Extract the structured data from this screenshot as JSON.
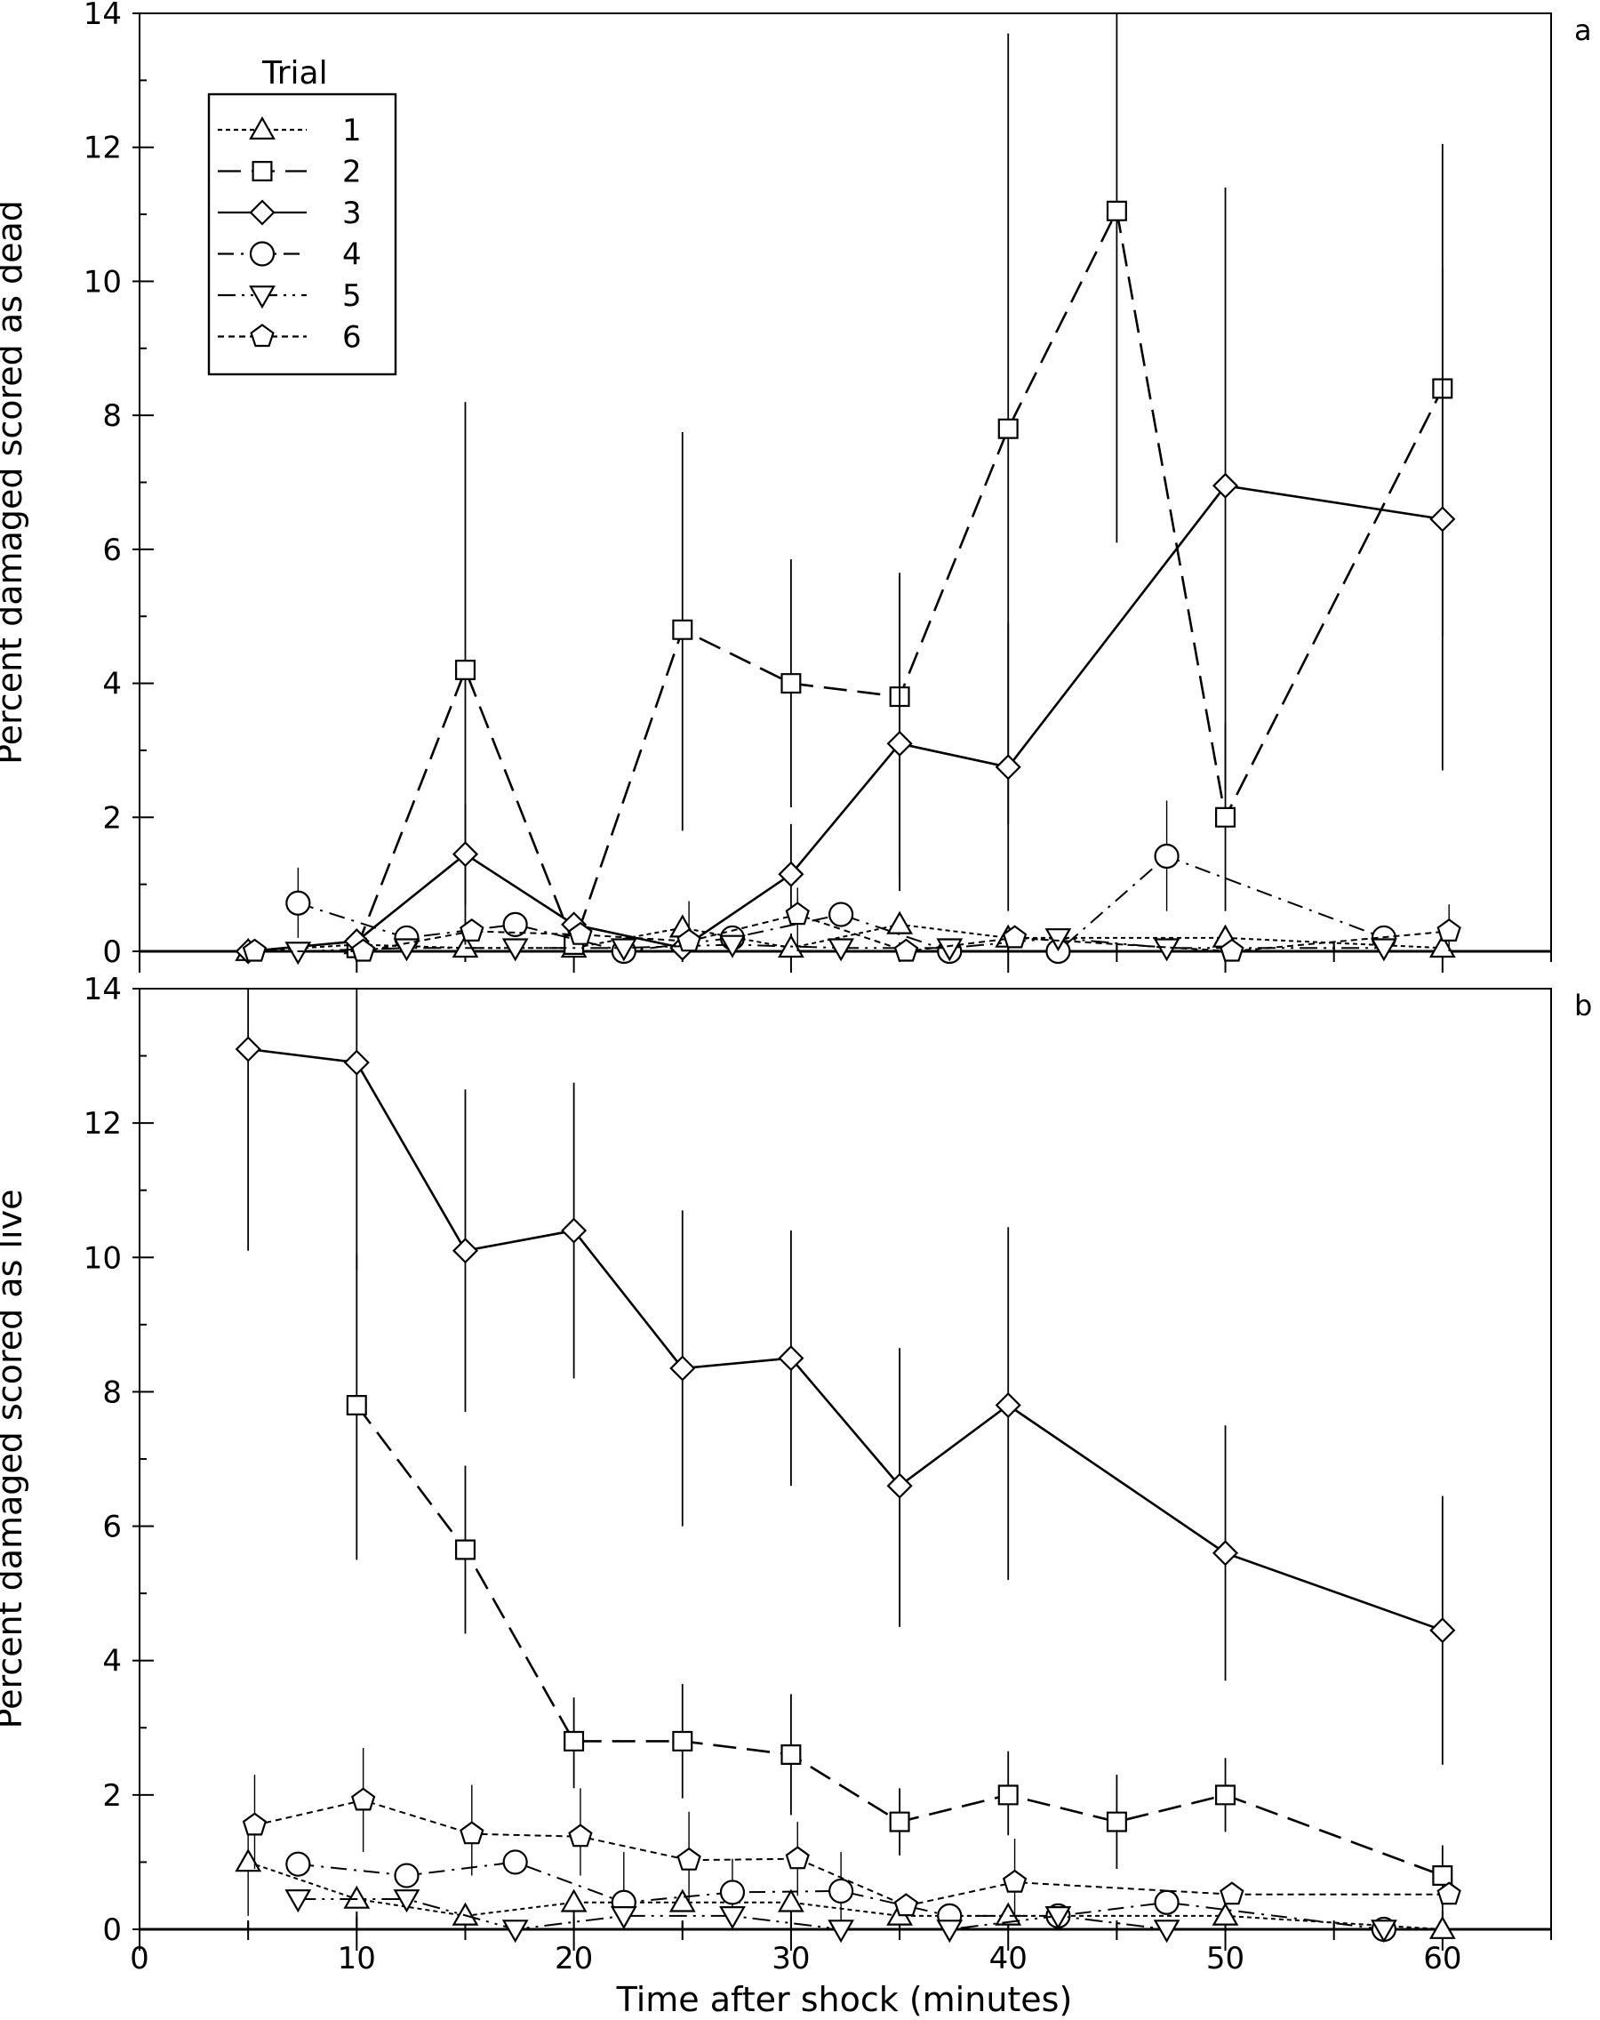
{
  "chart_data": [
    {
      "panel": "a",
      "type": "line",
      "ylabel": "Percent damaged scored as dead",
      "xlabel": "",
      "xlim": [
        0,
        65
      ],
      "ylim": [
        0,
        14
      ],
      "xticks": [
        "0",
        "10",
        "20",
        "30",
        "40",
        "50",
        "60"
      ],
      "yticks": [
        "0",
        "2",
        "4",
        "6",
        "8",
        "10",
        "12",
        "14"
      ],
      "legend": {
        "title": "Trial",
        "position": "top-left",
        "entries": [
          "1",
          "2",
          "3",
          "4",
          "5",
          "6"
        ]
      },
      "series": [
        {
          "name": "1",
          "marker": "triangle-up",
          "dash": "short",
          "points": [
            [
              5,
              0
            ],
            [
              10,
              0.1
            ],
            [
              15,
              0.05
            ],
            [
              20,
              0.05
            ],
            [
              25,
              0.35
            ],
            [
              30,
              0.05
            ],
            [
              35,
              0.4
            ],
            [
              40,
              0.2
            ],
            [
              50,
              0.2
            ],
            [
              60,
              0.05
            ]
          ]
        },
        {
          "name": "2",
          "marker": "square",
          "dash": "long",
          "points": [
            [
              10,
              0.05
            ],
            [
              15,
              4.2
            ],
            [
              20,
              0.1
            ],
            [
              25,
              4.8
            ],
            [
              30,
              4.0
            ],
            [
              35,
              3.8
            ],
            [
              40,
              7.8
            ],
            [
              45,
              11.05
            ],
            [
              50,
              2.0
            ],
            [
              60,
              8.4
            ]
          ],
          "err": [
            null,
            [
              0.1,
              8.2
            ],
            null,
            [
              1.8,
              7.75
            ],
            [
              2.15,
              5.85
            ],
            [
              0.9,
              5.65
            ],
            [
              1.9,
              13.7
            ],
            [
              6.1,
              14.0
            ],
            [
              0.6,
              3.4
            ],
            [
              4.7,
              12.05
            ]
          ]
        },
        {
          "name": "3",
          "marker": "diamond",
          "dash": "solid",
          "points": [
            [
              5,
              0
            ],
            [
              10,
              0.15
            ],
            [
              15,
              1.45
            ],
            [
              20,
              0.4
            ],
            [
              25,
              0.05
            ],
            [
              30,
              1.15
            ],
            [
              35,
              3.1
            ],
            [
              40,
              2.75
            ],
            [
              50,
              6.95
            ],
            [
              60,
              6.45
            ]
          ],
          "err": [
            null,
            null,
            [
              0.7,
              2.2
            ],
            null,
            null,
            [
              0.4,
              1.9
            ],
            [
              1.1,
              5.6
            ],
            [
              0.6,
              4.9
            ],
            [
              2.4,
              11.4
            ],
            [
              2.7,
              10.2
            ]
          ]
        },
        {
          "name": "4",
          "marker": "circle",
          "dash": "dashdot",
          "points": [
            [
              7.3,
              0.72
            ],
            [
              12.3,
              0.2
            ],
            [
              17.3,
              0.4
            ],
            [
              22.3,
              0.0
            ],
            [
              27.3,
              0.2
            ],
            [
              32.3,
              0.55
            ],
            [
              37.3,
              0.0
            ],
            [
              42.3,
              0.0
            ],
            [
              47.3,
              1.42
            ],
            [
              57.3,
              0.2
            ]
          ],
          "err": [
            [
              0.2,
              1.25
            ],
            null,
            null,
            null,
            null,
            null,
            null,
            null,
            [
              0.6,
              2.25
            ],
            null
          ]
        },
        {
          "name": "5",
          "marker": "triangle-down",
          "dash": "dashdotdot",
          "points": [
            [
              7.3,
              0
            ],
            [
              12.3,
              0.05
            ],
            [
              17.3,
              0.05
            ],
            [
              22.3,
              0.05
            ],
            [
              27.3,
              0.1
            ],
            [
              32.3,
              0.05
            ],
            [
              37.3,
              0.05
            ],
            [
              42.3,
              0.2
            ],
            [
              47.3,
              0.05
            ],
            [
              57.3,
              0.05
            ]
          ]
        },
        {
          "name": "6",
          "marker": "pentagon",
          "dash": "dotted",
          "points": [
            [
              5.3,
              0
            ],
            [
              10.3,
              0
            ],
            [
              15.3,
              0.3
            ],
            [
              20.3,
              0.25
            ],
            [
              25.3,
              0.15
            ],
            [
              30.3,
              0.55
            ],
            [
              35.3,
              0
            ],
            [
              40.3,
              0.2
            ],
            [
              50.3,
              0
            ],
            [
              60.3,
              0.3
            ]
          ],
          "err": [
            null,
            null,
            null,
            null,
            [
              0.0,
              0.75
            ],
            [
              0.0,
              0.95
            ],
            null,
            null,
            null,
            [
              0.0,
              0.7
            ]
          ]
        }
      ]
    },
    {
      "panel": "b",
      "type": "line",
      "ylabel": "Percent damaged scored as live",
      "xlabel": "Time after shock (minutes)",
      "xlim": [
        0,
        65
      ],
      "ylim": [
        0,
        14
      ],
      "xticks": [
        "0",
        "10",
        "20",
        "30",
        "40",
        "50",
        "60"
      ],
      "yticks": [
        "0",
        "2",
        "4",
        "6",
        "8",
        "10",
        "12",
        "14"
      ],
      "series": [
        {
          "name": "1",
          "marker": "triangle-up",
          "dash": "short",
          "points": [
            [
              5,
              1.0
            ],
            [
              10,
              0.45
            ],
            [
              15,
              0.2
            ],
            [
              20,
              0.4
            ],
            [
              25,
              0.4
            ],
            [
              30,
              0.4
            ],
            [
              35,
              0.2
            ],
            [
              40,
              0.2
            ],
            [
              50,
              0.2
            ],
            [
              60,
              0.0
            ]
          ],
          "err": [
            [
              0.2,
              1.6
            ],
            null,
            null,
            null,
            null,
            null,
            null,
            null,
            null,
            null
          ]
        },
        {
          "name": "2",
          "marker": "square",
          "dash": "long",
          "points": [
            [
              10,
              7.8
            ],
            [
              15,
              5.65
            ],
            [
              20,
              2.8
            ],
            [
              25,
              2.8
            ],
            [
              30,
              2.6
            ],
            [
              35,
              1.6
            ],
            [
              40,
              2.0
            ],
            [
              45,
              1.6
            ],
            [
              50,
              2.0
            ],
            [
              60,
              0.8
            ]
          ],
          "err": [
            [
              5.5,
              10.05
            ],
            [
              4.4,
              6.9
            ],
            [
              2.1,
              3.45
            ],
            [
              1.95,
              3.65
            ],
            [
              1.7,
              3.5
            ],
            [
              1.1,
              2.1
            ],
            [
              1.4,
              2.65
            ],
            [
              0.9,
              2.3
            ],
            [
              1.45,
              2.55
            ],
            [
              0.2,
              1.25
            ]
          ]
        },
        {
          "name": "3",
          "marker": "diamond",
          "dash": "solid",
          "points": [
            [
              5,
              13.1
            ],
            [
              10,
              12.9
            ],
            [
              15,
              10.1
            ],
            [
              20,
              10.4
            ],
            [
              25,
              8.35
            ],
            [
              30,
              8.5
            ],
            [
              35,
              6.6
            ],
            [
              40,
              7.8
            ],
            [
              50,
              5.6
            ],
            [
              60,
              4.45
            ]
          ],
          "err": [
            [
              10.1,
              14.0
            ],
            [
              9.8,
              14.0
            ],
            [
              7.7,
              12.5
            ],
            [
              8.2,
              12.6
            ],
            [
              6.0,
              10.7
            ],
            [
              6.6,
              10.4
            ],
            [
              4.5,
              8.65
            ],
            [
              5.2,
              10.45
            ],
            [
              3.7,
              7.5
            ],
            [
              2.45,
              6.45
            ]
          ]
        },
        {
          "name": "4",
          "marker": "circle",
          "dash": "dashdot",
          "points": [
            [
              7.3,
              0.97
            ],
            [
              12.3,
              0.8
            ],
            [
              17.3,
              1.0
            ],
            [
              22.3,
              0.4
            ],
            [
              27.3,
              0.55
            ],
            [
              32.3,
              0.57
            ],
            [
              37.3,
              0.2
            ],
            [
              42.3,
              0.2
            ],
            [
              47.3,
              0.4
            ],
            [
              57.3,
              0.0
            ]
          ],
          "err": [
            null,
            null,
            null,
            [
              0.0,
              1.15
            ],
            [
              0.0,
              1.05
            ],
            [
              0.0,
              1.15
            ],
            null,
            null,
            null,
            null
          ]
        },
        {
          "name": "5",
          "marker": "triangle-down",
          "dash": "dashdotdot",
          "points": [
            [
              7.3,
              0.45
            ],
            [
              12.3,
              0.45
            ],
            [
              17.3,
              0.0
            ],
            [
              22.3,
              0.2
            ],
            [
              27.3,
              0.2
            ],
            [
              32.3,
              0.0
            ],
            [
              37.3,
              0.0
            ],
            [
              42.3,
              0.2
            ],
            [
              47.3,
              0.0
            ],
            [
              57.3,
              0.0
            ]
          ]
        },
        {
          "name": "6",
          "marker": "pentagon",
          "dash": "dotted",
          "points": [
            [
              5.3,
              1.55
            ],
            [
              10.3,
              1.92
            ],
            [
              15.3,
              1.42
            ],
            [
              20.3,
              1.38
            ],
            [
              25.3,
              1.03
            ],
            [
              30.3,
              1.05
            ],
            [
              35.3,
              0.35
            ],
            [
              40.3,
              0.7
            ],
            [
              50.3,
              0.52
            ],
            [
              60.3,
              0.52
            ]
          ],
          "err": [
            [
              0.9,
              2.3
            ],
            [
              1.15,
              2.7
            ],
            [
              0.8,
              2.15
            ],
            [
              0.8,
              2.1
            ],
            [
              0.4,
              1.75
            ],
            [
              0.5,
              1.6
            ],
            null,
            [
              0.2,
              1.35
            ],
            null,
            null
          ]
        }
      ]
    }
  ]
}
